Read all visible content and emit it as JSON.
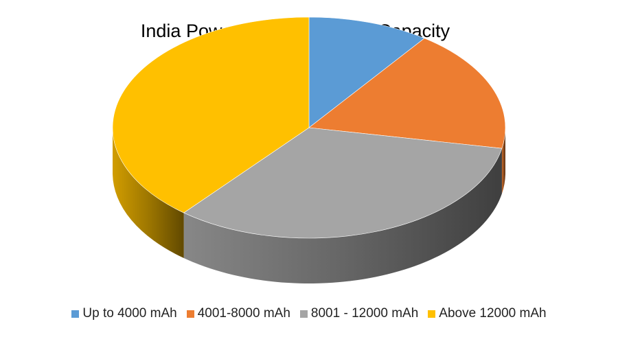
{
  "chart_data": {
    "type": "pie",
    "title": "India Power Bank Market by Capacity",
    "slices": [
      {
        "label": "Up to 4000 mAh",
        "value": 10,
        "color": "#5B9BD5"
      },
      {
        "label": "4001-8000 mAh",
        "value": 18,
        "color": "#ED7D31"
      },
      {
        "label": "8001 - 12000 mAh",
        "value": 33,
        "color": "#A5A5A5"
      },
      {
        "label": "Above 12000 mAh",
        "value": 39,
        "color": "#FFC000"
      }
    ],
    "legend_position": "bottom",
    "three_d": true
  }
}
